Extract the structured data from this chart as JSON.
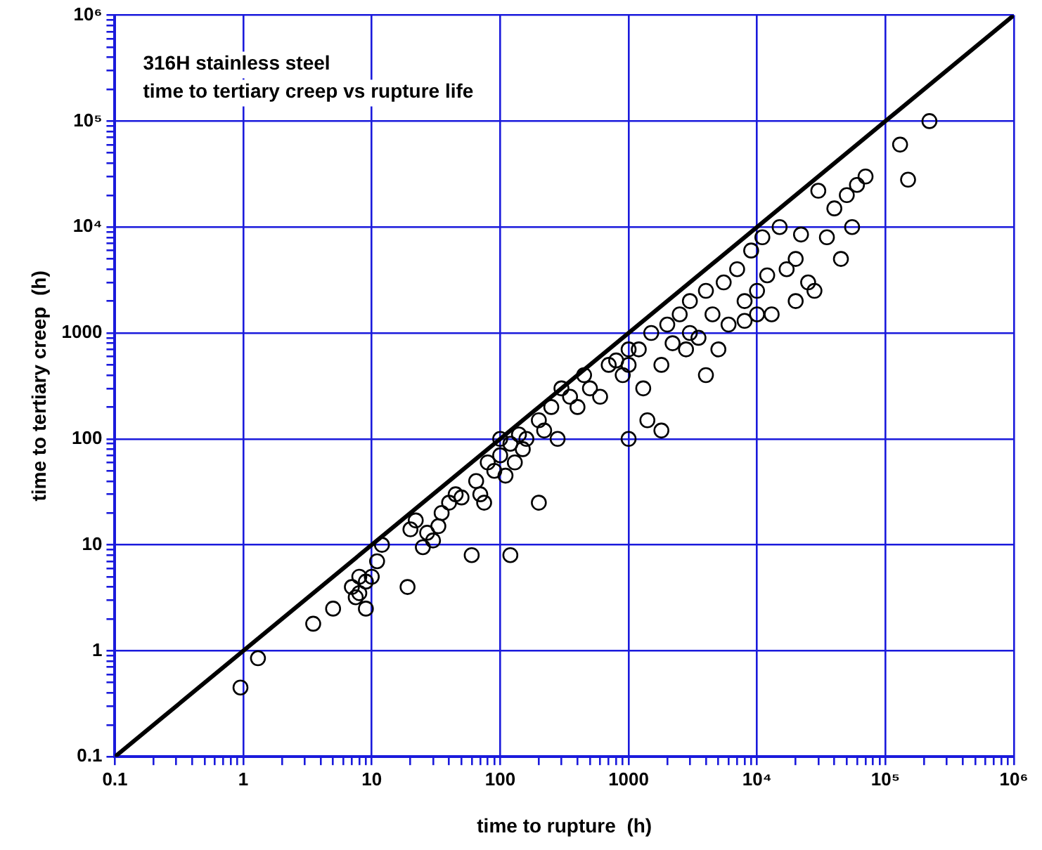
{
  "chart_data": {
    "type": "scatter",
    "title": "316H stainless steel",
    "subtitle": "time to tertiary creep vs rupture life",
    "xlabel": "time to rupture  (h)",
    "ylabel": "time to tertiary creep  (h)",
    "log": "xy",
    "grid": true,
    "legend": false,
    "marker": "circle",
    "xlim": [
      0.1,
      1000000
    ],
    "ylim": [
      0.1,
      1000000
    ],
    "xticks": [
      0.1,
      {
        "value": 0.2,
        "label": null
      },
      {
        "value": 0.3,
        "label": null
      },
      {
        "value": 0.4,
        "label": null
      },
      {
        "value": 0.5,
        "label": null
      },
      {
        "value": 0.6,
        "label": null
      },
      {
        "value": 0.7,
        "label": null
      },
      {
        "value": 0.8,
        "label": null
      },
      {
        "value": 0.9,
        "label": null
      },
      1,
      {
        "value": 2,
        "label": null
      },
      {
        "value": 3,
        "label": null
      },
      {
        "value": 4,
        "label": null
      },
      {
        "value": 5,
        "label": null
      },
      {
        "value": 6,
        "label": null
      },
      {
        "value": 7,
        "label": null
      },
      {
        "value": 8,
        "label": null
      },
      {
        "value": 9,
        "label": null
      },
      10,
      {
        "value": 20,
        "label": null
      },
      {
        "value": 30,
        "label": null
      },
      {
        "value": 40,
        "label": null
      },
      {
        "value": 50,
        "label": null
      },
      {
        "value": 60,
        "label": null
      },
      {
        "value": 70,
        "label": null
      },
      {
        "value": 80,
        "label": null
      },
      {
        "value": 90,
        "label": null
      },
      100,
      {
        "value": 200,
        "label": null
      },
      {
        "value": 300,
        "label": null
      },
      {
        "value": 400,
        "label": null
      },
      {
        "value": 500,
        "label": null
      },
      {
        "value": 600,
        "label": null
      },
      {
        "value": 700,
        "label": null
      },
      {
        "value": 800,
        "label": null
      },
      {
        "value": 900,
        "label": null
      },
      1000,
      {
        "value": 2000,
        "label": null
      },
      {
        "value": 3000,
        "label": null
      },
      {
        "value": 4000,
        "label": null
      },
      {
        "value": 5000,
        "label": null
      },
      {
        "value": 6000,
        "label": null
      },
      {
        "value": 7000,
        "label": null
      },
      {
        "value": 8000,
        "label": null
      },
      {
        "value": 9000,
        "label": null
      },
      {
        "value": 10000,
        "label": "10⁴"
      },
      {
        "value": 20000,
        "label": null
      },
      {
        "value": 30000,
        "label": null
      },
      {
        "value": 40000,
        "label": null
      },
      {
        "value": 50000,
        "label": null
      },
      {
        "value": 60000,
        "label": null
      },
      {
        "value": 70000,
        "label": null
      },
      {
        "value": 80000,
        "label": null
      },
      {
        "value": 90000,
        "label": null
      },
      {
        "value": 100000,
        "label": "10⁵"
      },
      {
        "value": 200000,
        "label": null
      },
      {
        "value": 300000,
        "label": null
      },
      {
        "value": 400000,
        "label": null
      },
      {
        "value": 500000,
        "label": null
      },
      {
        "value": 600000,
        "label": null
      },
      {
        "value": 700000,
        "label": null
      },
      {
        "value": 800000,
        "label": null
      },
      {
        "value": 900000,
        "label": null
      },
      {
        "value": 1000000,
        "label": "10⁶"
      }
    ],
    "yticks": [
      0.1,
      {
        "value": 0.2,
        "label": null
      },
      {
        "value": 0.3,
        "label": null
      },
      {
        "value": 0.4,
        "label": null
      },
      {
        "value": 0.5,
        "label": null
      },
      {
        "value": 0.6,
        "label": null
      },
      {
        "value": 0.7,
        "label": null
      },
      {
        "value": 0.8,
        "label": null
      },
      {
        "value": 0.9,
        "label": null
      },
      1,
      {
        "value": 2,
        "label": null
      },
      {
        "value": 3,
        "label": null
      },
      {
        "value": 4,
        "label": null
      },
      {
        "value": 5,
        "label": null
      },
      {
        "value": 6,
        "label": null
      },
      {
        "value": 7,
        "label": null
      },
      {
        "value": 8,
        "label": null
      },
      {
        "value": 9,
        "label": null
      },
      10,
      {
        "value": 20,
        "label": null
      },
      {
        "value": 30,
        "label": null
      },
      {
        "value": 40,
        "label": null
      },
      {
        "value": 50,
        "label": null
      },
      {
        "value": 60,
        "label": null
      },
      {
        "value": 70,
        "label": null
      },
      {
        "value": 80,
        "label": null
      },
      {
        "value": 90,
        "label": null
      },
      100,
      {
        "value": 200,
        "label": null
      },
      {
        "value": 300,
        "label": null
      },
      {
        "value": 400,
        "label": null
      },
      {
        "value": 500,
        "label": null
      },
      {
        "value": 600,
        "label": null
      },
      {
        "value": 700,
        "label": null
      },
      {
        "value": 800,
        "label": null
      },
      {
        "value": 900,
        "label": null
      },
      1000,
      {
        "value": 2000,
        "label": null
      },
      {
        "value": 3000,
        "label": null
      },
      {
        "value": 4000,
        "label": null
      },
      {
        "value": 5000,
        "label": null
      },
      {
        "value": 6000,
        "label": null
      },
      {
        "value": 7000,
        "label": null
      },
      {
        "value": 8000,
        "label": null
      },
      {
        "value": 9000,
        "label": null
      },
      {
        "value": 10000,
        "label": "10⁴"
      },
      {
        "value": 20000,
        "label": null
      },
      {
        "value": 30000,
        "label": null
      },
      {
        "value": 40000,
        "label": null
      },
      {
        "value": 50000,
        "label": null
      },
      {
        "value": 60000,
        "label": null
      },
      {
        "value": 70000,
        "label": null
      },
      {
        "value": 80000,
        "label": null
      },
      {
        "value": 90000,
        "label": null
      },
      {
        "value": 100000,
        "label": "10⁵"
      },
      {
        "value": 200000,
        "label": null
      },
      {
        "value": 300000,
        "label": null
      },
      {
        "value": 400000,
        "label": null
      },
      {
        "value": 500000,
        "label": null
      },
      {
        "value": 600000,
        "label": null
      },
      {
        "value": 700000,
        "label": null
      },
      {
        "value": 800000,
        "label": null
      },
      {
        "value": 900000,
        "label": null
      },
      {
        "value": 1000000,
        "label": "10⁶"
      }
    ],
    "series": [
      {
        "color": "#000000",
        "x": [
          0.95,
          1.3,
          3.5,
          5,
          7,
          7.5,
          8,
          8,
          9,
          9,
          10,
          11,
          12,
          19,
          20,
          22,
          25,
          27,
          30,
          33,
          35,
          40,
          45,
          50,
          60,
          65,
          70,
          75,
          80,
          90,
          100,
          100,
          110,
          120,
          120,
          130,
          140,
          150,
          160,
          200,
          200,
          220,
          250,
          280,
          300,
          350,
          400,
          450,
          500,
          600,
          700,
          800,
          900,
          1000,
          1000,
          1000,
          1200,
          1300,
          1400,
          1500,
          1800,
          1800,
          2000,
          2200,
          2500,
          2800,
          3000,
          3000,
          3500,
          4000,
          4000,
          4500,
          5000,
          5500,
          6000,
          7000,
          8000,
          8000,
          9000,
          10000,
          10000,
          11000,
          12000,
          13000,
          15000,
          17000,
          20000,
          20000,
          22000,
          25000,
          28000,
          30000,
          35000,
          40000,
          45000,
          50000,
          55000,
          60000,
          70000,
          130000,
          150000,
          220000
        ],
        "values": [
          0.45,
          0.85,
          1.8,
          2.5,
          4,
          3.2,
          3.5,
          5,
          4.5,
          2.5,
          5,
          7,
          10,
          4,
          14,
          17,
          9.5,
          13,
          11,
          15,
          20,
          25,
          30,
          28,
          8,
          40,
          30,
          25,
          60,
          50,
          100,
          70,
          45,
          8,
          90,
          60,
          110,
          80,
          100,
          25,
          150,
          120,
          200,
          100,
          300,
          250,
          200,
          400,
          300,
          250,
          500,
          550,
          400,
          100,
          700,
          500,
          700,
          300,
          150,
          1000,
          120,
          500,
          1200,
          800,
          1500,
          700,
          2000,
          1000,
          900,
          2500,
          400,
          1500,
          700,
          3000,
          1200,
          4000,
          2000,
          1300,
          6000,
          2500,
          1500,
          8000,
          3500,
          1500,
          10000,
          4000,
          5000,
          2000,
          8500,
          3000,
          2500,
          22000,
          8000,
          15000,
          5000,
          20000,
          10000,
          25000,
          30000,
          60000,
          28000,
          100000
        ]
      },
      {
        "type": "line",
        "color": "#000000",
        "marker": "none",
        "x": [
          0.1,
          1000000
        ],
        "values": [
          0.1,
          1000000
        ]
      }
    ]
  }
}
